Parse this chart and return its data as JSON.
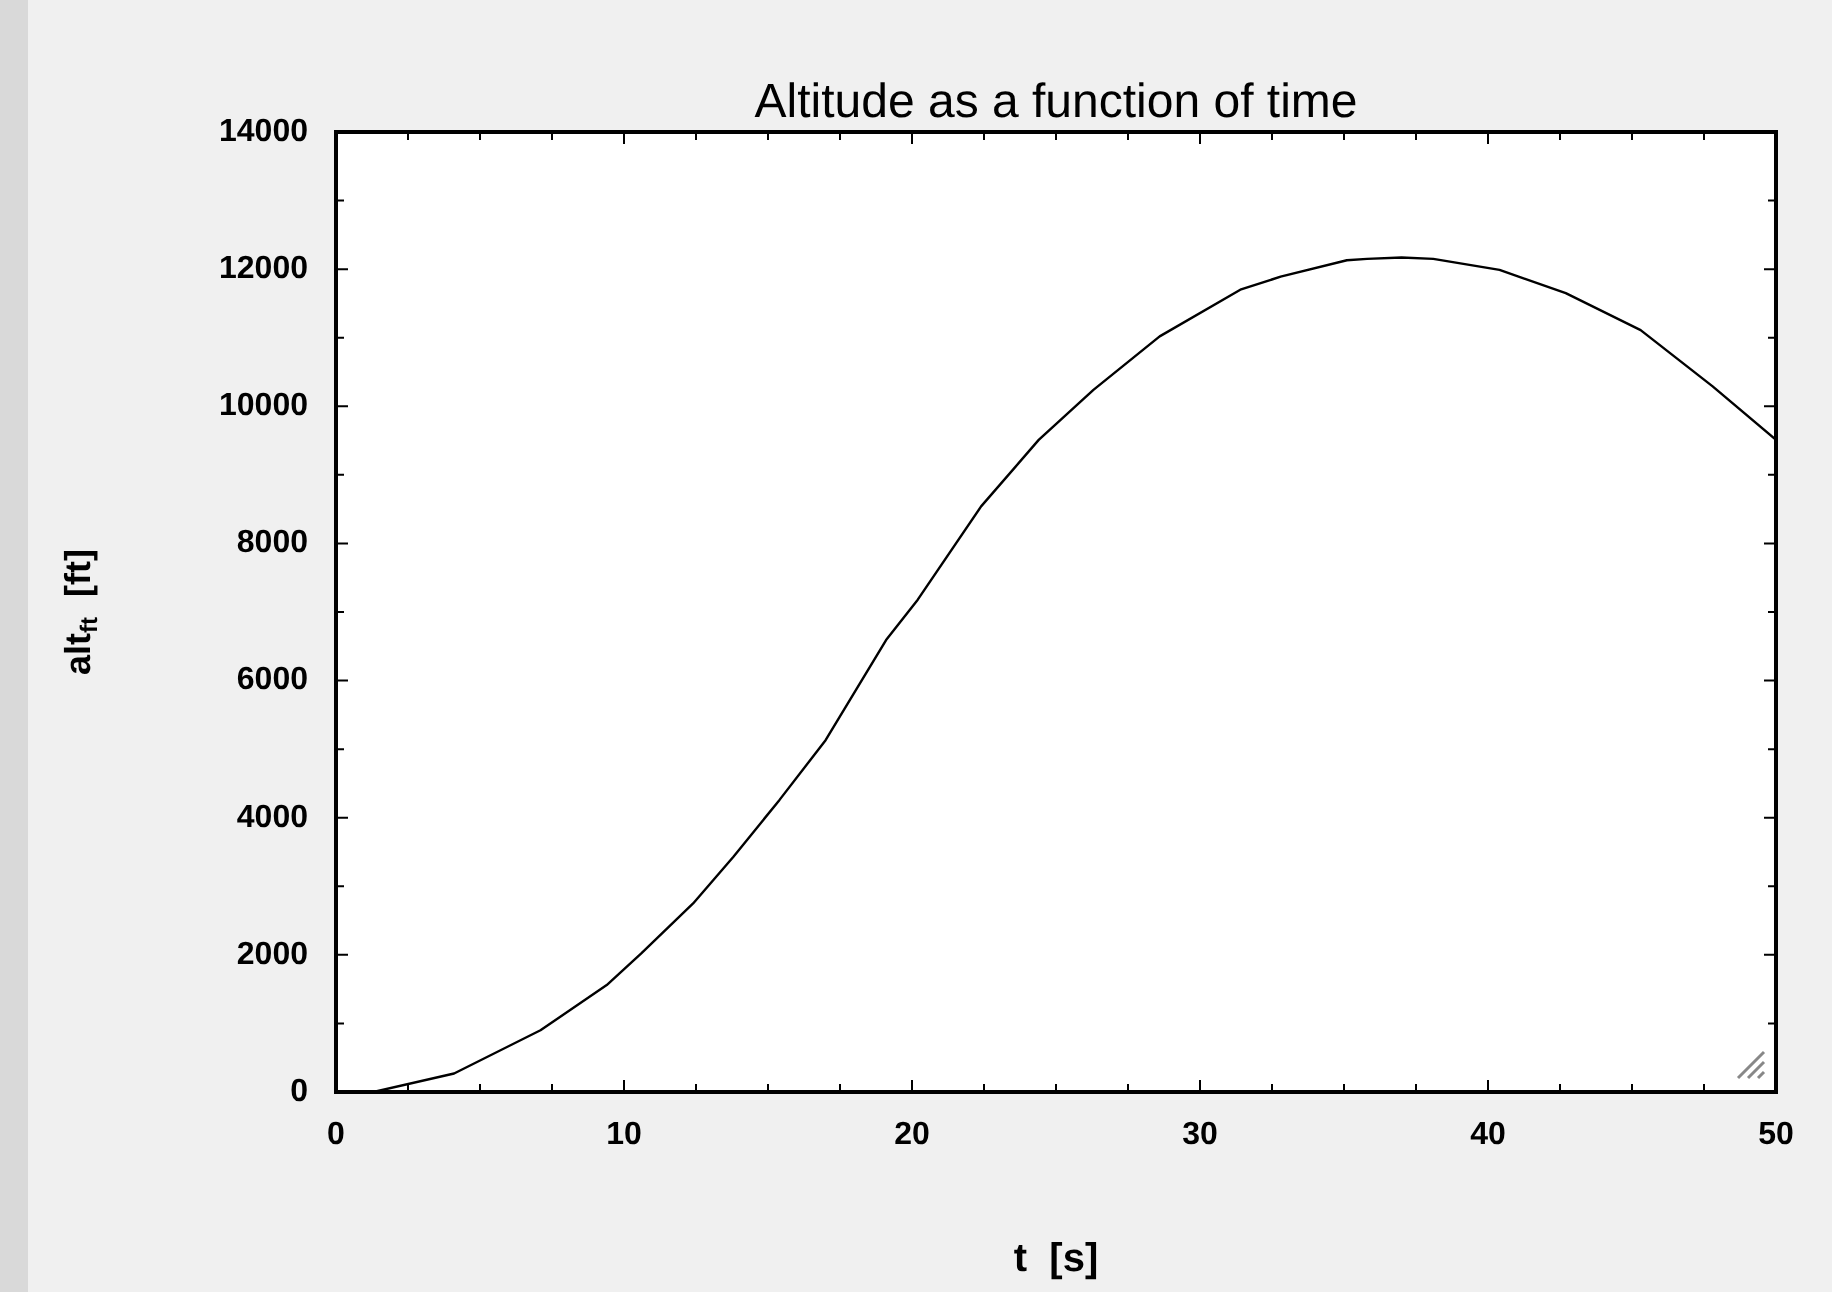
{
  "chart_data": {
    "type": "line",
    "title": "Altitude as a function of time",
    "xlabel": "t  [s]",
    "ylabel": "alt$_{ft}$  [ft]",
    "x": [
      1.3,
      4.1,
      7.1,
      9.4,
      10.6,
      12.4,
      13.8,
      15.4,
      17.0,
      19.1,
      20.2,
      22.4,
      24.4,
      26.3,
      28.6,
      31.4,
      32.8,
      35.1,
      35.8,
      37.0,
      38.1,
      40.4,
      42.7,
      45.3,
      47.8,
      50
    ],
    "series": [
      {
        "color": "#000000",
        "values": [
          0,
          270,
          900,
          1560,
          2020,
          2750,
          3430,
          4260,
          5130,
          6590,
          7180,
          8540,
          9510,
          10240,
          11020,
          11700,
          11890,
          12130,
          12150,
          12170,
          12150,
          11990,
          11650,
          11110,
          10290,
          9510
        ]
      }
    ],
    "xlim": [
      0,
      50
    ],
    "ylim": [
      0,
      14000
    ],
    "xticks": [
      0,
      {
        "value": 2.5,
        "label": null
      },
      {
        "value": 5,
        "label": null
      },
      {
        "value": 7.5,
        "label": null
      },
      10,
      {
        "value": 12.5,
        "label": null
      },
      {
        "value": 15,
        "label": null
      },
      {
        "value": 17.5,
        "label": null
      },
      20,
      {
        "value": 22.5,
        "label": null
      },
      {
        "value": 25,
        "label": null
      },
      {
        "value": 27.5,
        "label": null
      },
      30,
      {
        "value": 32.5,
        "label": null
      },
      {
        "value": 35,
        "label": null
      },
      {
        "value": 37.5,
        "label": null
      },
      40,
      {
        "value": 42.5,
        "label": null
      },
      {
        "value": 45,
        "label": null
      },
      {
        "value": 47.5,
        "label": null
      },
      50
    ],
    "yticks": [
      0,
      {
        "value": 1000,
        "label": null
      },
      2000,
      {
        "value": 3000,
        "label": null
      },
      4000,
      {
        "value": 5000,
        "label": null
      },
      6000,
      {
        "value": 7000,
        "label": null
      },
      8000,
      {
        "value": 9000,
        "label": null
      },
      10000,
      {
        "value": 11000,
        "label": null
      },
      12000,
      {
        "value": 13000,
        "label": null
      },
      14000
    ],
    "grid": false,
    "legend": false,
    "marker": "none",
    "line_style": "solid"
  }
}
